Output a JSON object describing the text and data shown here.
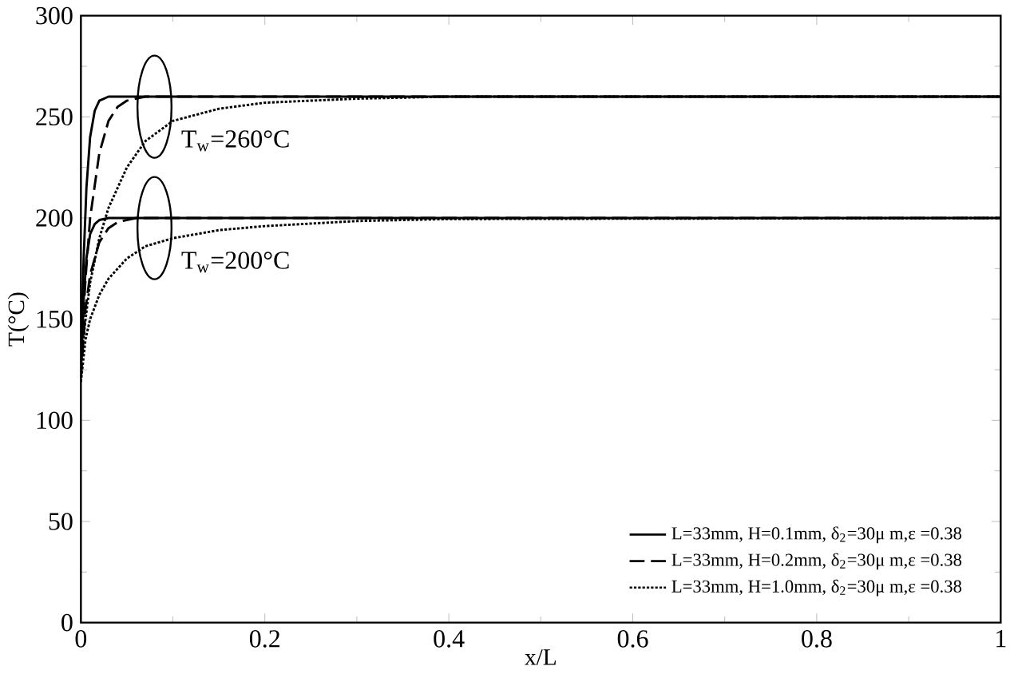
{
  "chart_data": {
    "type": "line",
    "xlabel": "x/L",
    "ylabel": "T(°C)",
    "xlim": [
      0,
      1
    ],
    "ylim": [
      0,
      300
    ],
    "xticks": [
      0,
      0.2,
      0.4,
      0.6,
      0.8,
      1
    ],
    "yticks": [
      0,
      50,
      100,
      150,
      200,
      250,
      300
    ],
    "grid": false,
    "legend": "bottom right",
    "marker": "none",
    "series": [
      {
        "name": "L=33mm, H=0.1mm, δ$_{2}$=30μ m,ε =0.38",
        "color": "#000000",
        "line_style": "solid",
        "x": [
          0,
          0.003,
          0.006,
          0.01,
          0.015,
          0.02,
          0.03,
          1
        ],
        "values": [
          132,
          180,
          215,
          240,
          253,
          258,
          260,
          260
        ]
      },
      {
        "name": "L=33mm, H=0.2mm, δ$_{2}$=30μ m,ε =0.38",
        "color": "#000000",
        "line_style": "dashed",
        "x": [
          0,
          0.005,
          0.01,
          0.02,
          0.03,
          0.04,
          0.05,
          0.07,
          1
        ],
        "values": [
          130,
          170,
          200,
          232,
          248,
          255,
          258,
          260,
          260
        ]
      },
      {
        "name": "L=33mm, H=1.0mm, δ$_{2}$=30μ m,ε =0.38",
        "color": "#000000",
        "line_style": "dotted",
        "x": [
          0,
          0.005,
          0.01,
          0.02,
          0.03,
          0.05,
          0.07,
          0.1,
          0.15,
          0.2,
          0.3,
          0.4,
          1
        ],
        "values": [
          128,
          150,
          168,
          190,
          205,
          225,
          238,
          248,
          254,
          257,
          259,
          260,
          260
        ]
      },
      {
        "color": "#000000",
        "line_style": "solid",
        "x": [
          0,
          0.003,
          0.006,
          0.01,
          0.015,
          0.02,
          0.03,
          1
        ],
        "values": [
          123,
          160,
          180,
          192,
          197,
          199,
          200,
          200
        ]
      },
      {
        "color": "#000000",
        "line_style": "dashed",
        "x": [
          0,
          0.005,
          0.01,
          0.02,
          0.03,
          0.04,
          0.06,
          1
        ],
        "values": [
          121,
          155,
          172,
          188,
          195,
          198,
          200,
          200
        ]
      },
      {
        "color": "#000000",
        "line_style": "dotted",
        "x": [
          0,
          0.005,
          0.01,
          0.02,
          0.03,
          0.05,
          0.07,
          0.1,
          0.15,
          0.2,
          0.3,
          0.4,
          1
        ],
        "values": [
          119,
          140,
          150,
          162,
          170,
          180,
          186,
          190,
          194,
          196,
          198.5,
          199.5,
          200
        ]
      }
    ],
    "annotations": [
      "T$_{w}$=260°C",
      "T$_{w}$=200°C"
    ]
  }
}
